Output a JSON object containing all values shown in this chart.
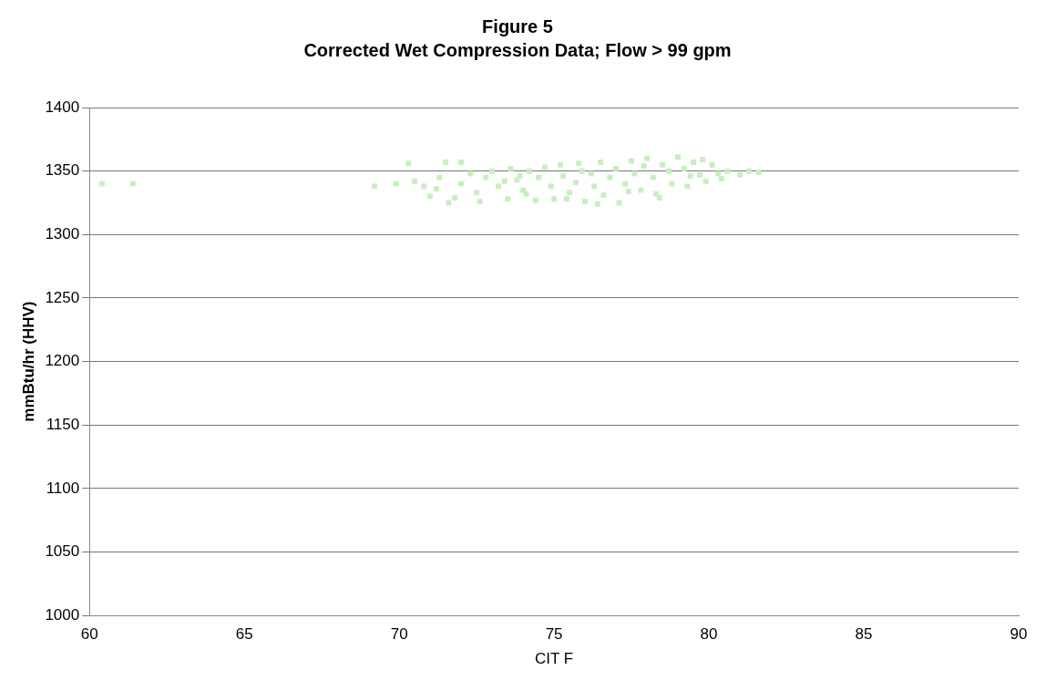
{
  "chart_data": {
    "type": "scatter",
    "title": "Figure 5",
    "subtitle": "Corrected Wet Compression Data; Flow > 99 gpm",
    "xlabel": "CIT F",
    "ylabel": "mmBtu/hr (HHV)",
    "xlim": [
      60,
      90
    ],
    "xticks": [
      60,
      65,
      70,
      75,
      80,
      85,
      90
    ],
    "ylim": [
      1000,
      1400
    ],
    "yticks": [
      1000,
      1050,
      1100,
      1150,
      1200,
      1250,
      1300,
      1350,
      1400
    ],
    "grid": "y",
    "marker": "square",
    "legend": false,
    "series": [
      {
        "color": "#c8eec0",
        "x": [
          60.4,
          61.4,
          69.2,
          69.9,
          70.3,
          70.5,
          70.8,
          71.0,
          71.3,
          71.5,
          71.6,
          72.0,
          72.0,
          72.3,
          72.5,
          72.8,
          73.0,
          73.2,
          73.5,
          73.6,
          73.8,
          74.0,
          74.2,
          74.4,
          74.5,
          74.7,
          74.9,
          75.0,
          75.2,
          75.3,
          75.5,
          75.7,
          75.8,
          76.0,
          76.2,
          76.3,
          76.5,
          76.6,
          76.8,
          77.0,
          77.1,
          77.3,
          77.5,
          77.6,
          77.8,
          78.0,
          78.2,
          78.3,
          78.5,
          78.7,
          78.8,
          79.0,
          79.2,
          79.3,
          79.5,
          79.7,
          79.9,
          80.1,
          80.3,
          80.6,
          81.0,
          81.3,
          81.6,
          71.2,
          72.6,
          73.4,
          74.1,
          75.4,
          76.4,
          77.4,
          78.4,
          79.4,
          80.4,
          71.8,
          73.9,
          75.9,
          77.9,
          79.8
        ],
        "values": [
          1340,
          1340,
          1338,
          1340,
          1356,
          1342,
          1338,
          1330,
          1345,
          1357,
          1325,
          1357,
          1340,
          1348,
          1333,
          1345,
          1350,
          1338,
          1328,
          1352,
          1343,
          1335,
          1350,
          1327,
          1345,
          1353,
          1338,
          1328,
          1355,
          1346,
          1333,
          1341,
          1356,
          1326,
          1348,
          1338,
          1357,
          1331,
          1345,
          1352,
          1325,
          1340,
          1358,
          1348,
          1335,
          1360,
          1345,
          1332,
          1355,
          1350,
          1340,
          1361,
          1352,
          1338,
          1357,
          1347,
          1342,
          1355,
          1348,
          1350,
          1347,
          1350,
          1349,
          1336,
          1326,
          1342,
          1332,
          1328,
          1324,
          1334,
          1329,
          1346,
          1344,
          1329,
          1346,
          1350,
          1354,
          1359
        ]
      }
    ]
  }
}
